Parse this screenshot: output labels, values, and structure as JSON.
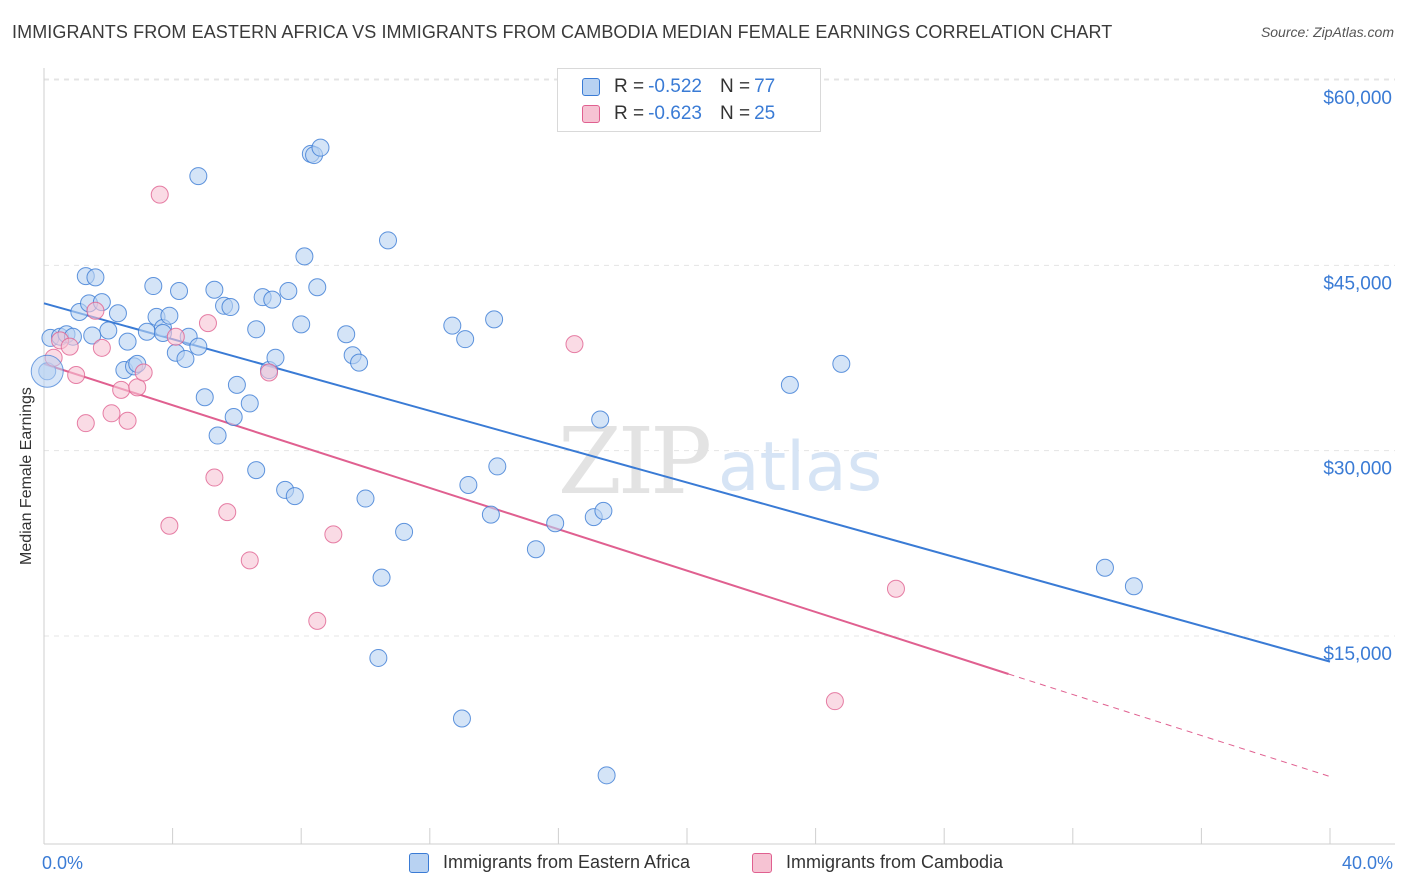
{
  "header": {
    "title": "IMMIGRANTS FROM EASTERN AFRICA VS IMMIGRANTS FROM CAMBODIA MEDIAN FEMALE EARNINGS CORRELATION CHART",
    "source": "Source: ZipAtlas.com"
  },
  "watermark": {
    "zip": "ZIP",
    "atlas": "atlas"
  },
  "colors": {
    "blue": "#3a7bd5",
    "blue_fill": "#b8d2f2",
    "pink": "#e06090",
    "pink_fill": "#f6c3d3",
    "grid": "#e5e5e5",
    "axis_text": "#3a7bd5"
  },
  "legend": {
    "series": [
      {
        "name": "Immigrants from Eastern Africa",
        "r_label": "R =",
        "r_value": "-0.522",
        "n_label": "N =",
        "n_value": "77"
      },
      {
        "name": "Immigrants from Cambodia",
        "r_label": "R =",
        "r_value": "-0.623",
        "n_label": "N =",
        "n_value": "25"
      }
    ]
  },
  "chart_data": {
    "type": "scatter",
    "title": "IMMIGRANTS FROM EASTERN AFRICA VS IMMIGRANTS FROM CAMBODIA MEDIAN FEMALE EARNINGS CORRELATION CHART",
    "xlabel": "",
    "ylabel": "Median Female Earnings",
    "xlim": [
      0,
      40
    ],
    "ylim": [
      0,
      62000
    ],
    "x_tick_labels": [
      "0.0%",
      "40.0%"
    ],
    "y_ticks": [
      15000,
      30000,
      45000,
      60000
    ],
    "y_tick_labels": [
      "$15,000",
      "$30,000",
      "$45,000",
      "$60,000"
    ],
    "grid": true,
    "legend_position": "top-center",
    "series": [
      {
        "name": "Immigrants from Eastern Africa",
        "color": "#3a7bd5",
        "trend": {
          "x": [
            0,
            40
          ],
          "y": [
            43300,
            14300
          ],
          "dashed_from": null
        },
        "points": [
          [
            0.1,
            37800
          ],
          [
            0.2,
            40500
          ],
          [
            0.5,
            40600
          ],
          [
            0.7,
            40800
          ],
          [
            0.9,
            40600
          ],
          [
            1.1,
            42600
          ],
          [
            1.3,
            45500
          ],
          [
            1.4,
            43300
          ],
          [
            1.6,
            45400
          ],
          [
            1.8,
            43400
          ],
          [
            2.0,
            41100
          ],
          [
            2.3,
            42500
          ],
          [
            2.5,
            37900
          ],
          [
            2.6,
            40200
          ],
          [
            2.8,
            38200
          ],
          [
            2.9,
            38400
          ],
          [
            3.2,
            41000
          ],
          [
            3.4,
            44700
          ],
          [
            3.5,
            42200
          ],
          [
            3.7,
            41300
          ],
          [
            3.9,
            42300
          ],
          [
            4.1,
            39300
          ],
          [
            4.2,
            44300
          ],
          [
            4.4,
            38800
          ],
          [
            4.5,
            40600
          ],
          [
            4.8,
            39800
          ],
          [
            5.0,
            35700
          ],
          [
            5.3,
            44400
          ],
          [
            5.4,
            32600
          ],
          [
            5.6,
            43100
          ],
          [
            5.8,
            43000
          ],
          [
            5.9,
            34100
          ],
          [
            6.0,
            36700
          ],
          [
            6.4,
            35200
          ],
          [
            6.6,
            29800
          ],
          [
            6.8,
            43800
          ],
          [
            7.0,
            37900
          ],
          [
            7.1,
            43600
          ],
          [
            7.2,
            38900
          ],
          [
            7.5,
            28200
          ],
          [
            7.6,
            44300
          ],
          [
            7.8,
            27700
          ],
          [
            8.0,
            41600
          ],
          [
            8.1,
            47100
          ],
          [
            8.3,
            55400
          ],
          [
            8.4,
            55300
          ],
          [
            8.5,
            44600
          ],
          [
            8.6,
            55900
          ],
          [
            4.8,
            53600
          ],
          [
            9.4,
            40800
          ],
          [
            9.6,
            39100
          ],
          [
            9.8,
            38500
          ],
          [
            10.0,
            27500
          ],
          [
            10.4,
            14600
          ],
          [
            10.5,
            21100
          ],
          [
            10.7,
            48400
          ],
          [
            11.2,
            24800
          ],
          [
            12.7,
            41500
          ],
          [
            13.0,
            9700
          ],
          [
            13.1,
            40400
          ],
          [
            13.2,
            28600
          ],
          [
            13.9,
            26200
          ],
          [
            14.0,
            42000
          ],
          [
            14.1,
            30100
          ],
          [
            15.3,
            23400
          ],
          [
            15.9,
            25500
          ],
          [
            17.3,
            33900
          ],
          [
            17.1,
            26000
          ],
          [
            17.4,
            26500
          ],
          [
            17.5,
            5100
          ],
          [
            23.2,
            36700
          ],
          [
            24.8,
            38400
          ],
          [
            33.0,
            21900
          ],
          [
            33.9,
            20400
          ],
          [
            1.5,
            40700
          ],
          [
            3.7,
            40900
          ],
          [
            6.6,
            41200
          ]
        ]
      },
      {
        "name": "Immigrants from Cambodia",
        "color": "#e06090",
        "trend": {
          "x": [
            0,
            30,
            40
          ],
          "y": [
            38400,
            13300,
            5000
          ],
          "dashed_from": 30
        },
        "points": [
          [
            0.3,
            38900
          ],
          [
            0.5,
            40300
          ],
          [
            0.8,
            39800
          ],
          [
            1.0,
            37500
          ],
          [
            1.3,
            33600
          ],
          [
            1.6,
            42700
          ],
          [
            1.8,
            39700
          ],
          [
            2.1,
            34400
          ],
          [
            2.4,
            36300
          ],
          [
            2.6,
            33800
          ],
          [
            2.9,
            36500
          ],
          [
            3.1,
            37700
          ],
          [
            3.6,
            52100
          ],
          [
            3.9,
            25300
          ],
          [
            4.1,
            40600
          ],
          [
            5.1,
            41700
          ],
          [
            5.3,
            29200
          ],
          [
            5.7,
            26400
          ],
          [
            6.4,
            22500
          ],
          [
            7.0,
            37700
          ],
          [
            8.5,
            17600
          ],
          [
            9.0,
            24600
          ],
          [
            16.5,
            40000
          ],
          [
            26.5,
            20200
          ],
          [
            24.6,
            11100
          ]
        ]
      }
    ]
  }
}
